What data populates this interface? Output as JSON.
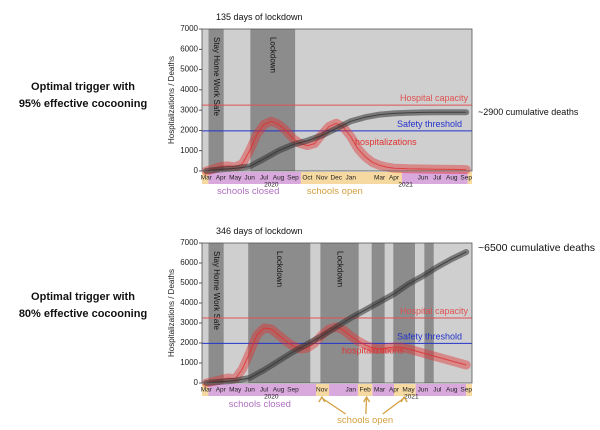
{
  "rows": [
    {
      "label_line1": "Optimal trigger with",
      "label_line2": "95% effective cocooning"
    },
    {
      "label_line1": "Optimal trigger with",
      "label_line2": "80% effective cocooning"
    }
  ],
  "colors": {
    "background": "#cfcfcf",
    "lockdown": "#8c8c8c",
    "hospital_capacity": "#e05050",
    "safety_threshold": "#2233cc",
    "hospitalizations": "#e03030",
    "deaths": "#333333",
    "schools_closed": "#d9a8dd",
    "schools_open": "#f6d9a0",
    "schools_closed_text": "#b070c0",
    "schools_open_text": "#d4a040"
  },
  "chart_data": [
    {
      "type": "area",
      "title": "135 days of lockdown",
      "ylabel": "Hospitalizations / Deaths",
      "ylim": [
        0,
        7000
      ],
      "yticks": [
        0,
        1000,
        2000,
        3000,
        4000,
        5000,
        6000,
        7000
      ],
      "x_months": [
        "Mar",
        "Apr",
        "May",
        "Jun",
        "Jul",
        "Aug",
        "Sep",
        "Oct",
        "Nov",
        "Dec",
        "Jan",
        "Feb",
        "Mar",
        "Apr",
        "May",
        "Jun",
        "Jul",
        "Aug",
        "Sep"
      ],
      "x_tick_labels": [
        "Mar",
        "Apr",
        "May",
        "Jun",
        "Jul",
        "Aug",
        "Sep",
        "Oct",
        "Nov",
        "Dec",
        "Jan",
        "Mar",
        "Apr",
        "Jun",
        "Jul",
        "Aug",
        "Sep"
      ],
      "x_tick_positions": [
        0,
        1,
        2,
        3,
        4,
        5,
        6,
        7,
        8,
        9,
        10,
        12,
        13,
        15,
        16,
        17,
        18
      ],
      "year_labels": [
        {
          "text": "2020",
          "pos": 4.5
        },
        {
          "text": "2021",
          "pos": 13.8
        }
      ],
      "lockdown_periods": [
        {
          "label": "Stay Home Work Safe",
          "start": 0.15,
          "end": 1.2
        },
        {
          "label": "Lockdown",
          "start": 3.05,
          "end": 6.15
        }
      ],
      "hospital_capacity": 3250,
      "hospital_capacity_label": "Hospital capacity",
      "safety_threshold": 1980,
      "safety_threshold_label": "Safety threshold",
      "series": [
        {
          "name": "hospitalizations",
          "x": [
            0,
            0.5,
            1,
            1.5,
            2,
            2.5,
            3,
            3.5,
            4,
            4.5,
            5,
            5.5,
            6,
            6.5,
            7,
            7.5,
            8,
            8.5,
            9,
            9.5,
            10,
            10.5,
            11,
            11.5,
            12,
            12.5,
            13,
            14,
            15,
            16,
            17,
            18
          ],
          "values": [
            0,
            100,
            220,
            250,
            200,
            350,
            1000,
            1800,
            2300,
            2450,
            2300,
            2000,
            1600,
            1350,
            1250,
            1350,
            1800,
            2200,
            2350,
            2150,
            1700,
            1100,
            700,
            430,
            280,
            190,
            140,
            110,
            100,
            90,
            80,
            70
          ]
        },
        {
          "name": "deaths",
          "x": [
            0,
            1,
            2,
            3,
            4,
            5,
            6,
            7,
            8,
            9,
            10,
            11,
            12,
            13,
            14,
            15,
            16,
            17,
            18
          ],
          "values": [
            0,
            80,
            130,
            220,
            600,
            1000,
            1300,
            1500,
            1750,
            2100,
            2450,
            2650,
            2780,
            2840,
            2870,
            2890,
            2900,
            2900,
            2900
          ]
        }
      ],
      "deaths_annotation": "~2900 cumulative deaths",
      "hospitalizations_label": "hospitalizations",
      "schools_bands": [
        {
          "type": "open",
          "start": -0.3,
          "end": 0.15
        },
        {
          "type": "closed",
          "start": 0.15,
          "end": 6.55
        },
        {
          "type": "open",
          "start": 6.55,
          "end": 13.55
        },
        {
          "type": "closed",
          "start": 13.55,
          "end": 18.1
        },
        {
          "type": "open",
          "start": 18.1,
          "end": 18.4
        }
      ],
      "schools_labels": [
        {
          "text": "schools closed",
          "type": "closed",
          "pos": 2.9
        },
        {
          "text": "schools open",
          "type": "open",
          "pos": 8.9
        }
      ]
    },
    {
      "type": "area",
      "title": "346 days of lockdown",
      "ylabel": "Hospitalizations / Deaths",
      "ylim": [
        0,
        7000
      ],
      "yticks": [
        0,
        1000,
        2000,
        3000,
        4000,
        5000,
        6000,
        7000
      ],
      "x_months": [
        "Mar",
        "Apr",
        "May",
        "Jun",
        "Jul",
        "Aug",
        "Sep",
        "Oct",
        "Nov",
        "Dec",
        "Jan",
        "Feb",
        "Mar",
        "Apr",
        "May",
        "Jun",
        "Jul",
        "Aug",
        "Sep"
      ],
      "x_tick_labels": [
        "Mar",
        "Apr",
        "May",
        "Jun",
        "Jul",
        "Aug",
        "Sep",
        "Nov",
        "Jan",
        "Feb",
        "Mar",
        "Apr",
        "May",
        "Jun",
        "Jul",
        "Aug",
        "Sep"
      ],
      "x_tick_positions": [
        0,
        1,
        2,
        3,
        4,
        5,
        6,
        8,
        10,
        11,
        12,
        13,
        14,
        15,
        16,
        17,
        18
      ],
      "year_labels": [
        {
          "text": "2020",
          "pos": 4.5
        },
        {
          "text": "2021",
          "pos": 14.2
        }
      ],
      "lockdown_periods": [
        {
          "label": "Stay Home Work Safe",
          "start": 0.15,
          "end": 1.2
        },
        {
          "label": "Lockdown",
          "start": 2.9,
          "end": 7.2
        },
        {
          "label": "Lockdown",
          "start": 7.9,
          "end": 10.55
        },
        {
          "label": "",
          "start": 11.45,
          "end": 12.35
        },
        {
          "label": "",
          "start": 12.95,
          "end": 14.45
        },
        {
          "label": "",
          "start": 15.1,
          "end": 15.75
        }
      ],
      "hospital_capacity": 3250,
      "hospital_capacity_label": "Hospital capacity",
      "safety_threshold": 1980,
      "safety_threshold_label": "Safety threshold",
      "series": [
        {
          "name": "hospitalizations",
          "x": [
            0,
            0.5,
            1,
            1.5,
            2,
            2.5,
            3,
            3.5,
            4,
            4.5,
            5,
            5.5,
            6,
            6.5,
            7,
            7.5,
            8,
            8.5,
            9,
            9.5,
            10,
            10.5,
            11,
            11.5,
            12,
            12.5,
            13,
            13.5,
            14,
            14.5,
            15,
            15.5,
            16,
            16.5,
            17,
            17.5,
            18
          ],
          "values": [
            0,
            80,
            160,
            250,
            200,
            700,
            1500,
            2400,
            2750,
            2700,
            2400,
            2100,
            1850,
            1700,
            1750,
            2000,
            2400,
            2700,
            2800,
            2650,
            2350,
            2100,
            1900,
            1750,
            1700,
            1750,
            1800,
            1780,
            1700,
            1600,
            1500,
            1400,
            1300,
            1200,
            1100,
            1000,
            900
          ]
        },
        {
          "name": "deaths",
          "x": [
            0,
            1,
            2,
            3,
            4,
            5,
            6,
            7,
            8,
            9,
            10,
            11,
            12,
            13,
            14,
            15,
            16,
            17,
            18
          ],
          "values": [
            0,
            60,
            120,
            250,
            650,
            1100,
            1550,
            1950,
            2350,
            2800,
            3250,
            3650,
            4050,
            4450,
            4950,
            5350,
            5800,
            6200,
            6550
          ]
        }
      ],
      "deaths_annotation": "~6500 cumulative deaths",
      "hospitalizations_label": "hospitalizations",
      "schools_bands": [
        {
          "type": "open",
          "start": -0.3,
          "end": 0.15
        },
        {
          "type": "closed",
          "start": 0.15,
          "end": 7.6
        },
        {
          "type": "open",
          "start": 7.6,
          "end": 8.5
        },
        {
          "type": "closed",
          "start": 8.5,
          "end": 10.5
        },
        {
          "type": "open",
          "start": 10.5,
          "end": 11.5
        },
        {
          "type": "closed",
          "start": 11.5,
          "end": 13.0
        },
        {
          "type": "open",
          "start": 13.0,
          "end": 14.5
        },
        {
          "type": "closed",
          "start": 14.5,
          "end": 18.0
        },
        {
          "type": "open",
          "start": 18.0,
          "end": 18.4
        }
      ],
      "schools_labels": [
        {
          "text": "schools closed",
          "type": "closed",
          "pos": 3.7
        },
        {
          "text": "schools open",
          "type": "open",
          "pos": 11.0
        }
      ],
      "schools_open_arrows": [
        8.0,
        11.1,
        13.7
      ]
    }
  ]
}
